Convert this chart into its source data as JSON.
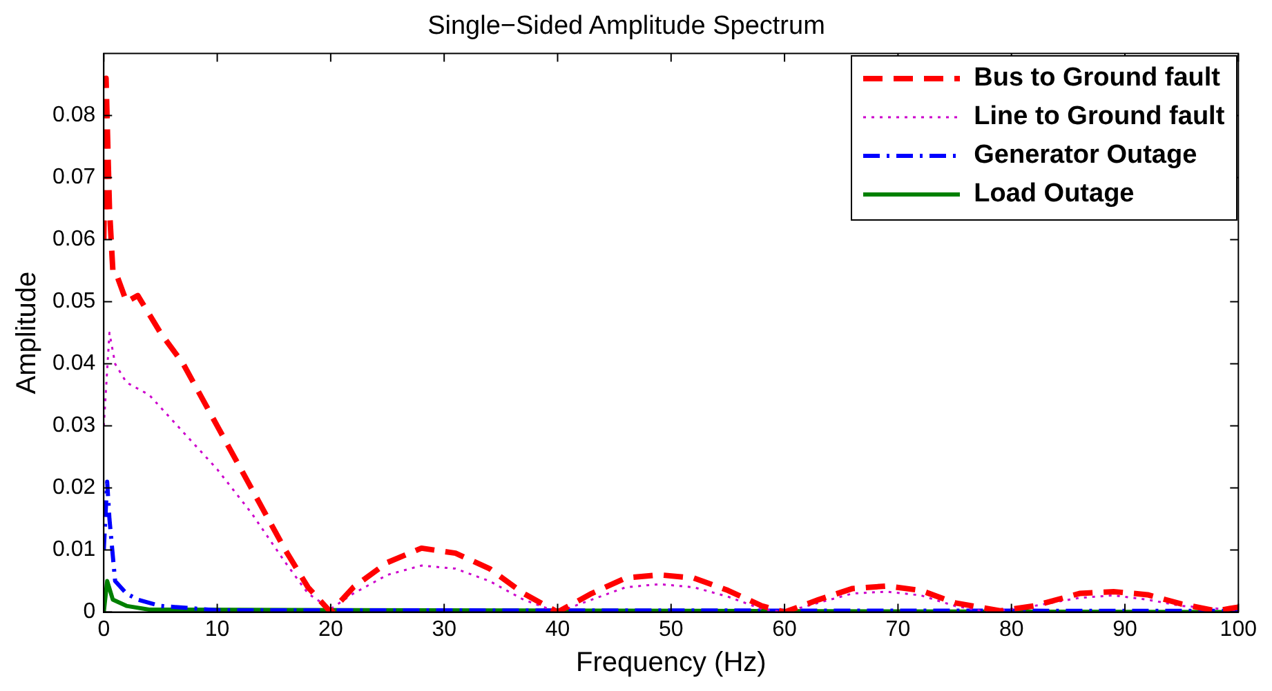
{
  "chart_data": {
    "type": "line",
    "title": "Single−Sided Amplitude Spectrum",
    "xlabel": "Frequency (Hz)",
    "ylabel": "Amplitude",
    "xlim": [
      0,
      100
    ],
    "xticks": [
      0,
      10,
      20,
      30,
      40,
      50,
      60,
      70,
      80,
      90,
      100
    ],
    "ylim": [
      0,
      0.09
    ],
    "yticks": [
      0,
      0.01,
      0.02,
      0.03,
      0.04,
      0.05,
      0.06,
      0.07,
      0.08
    ],
    "grid": false,
    "legend": "top right",
    "marker": "none",
    "series": [
      {
        "name": "Bus to Ground fault",
        "color": "#ff0000",
        "line_style": "dashed",
        "x": [
          0,
          0.2,
          0.5,
          0.8,
          1,
          2,
          3,
          5,
          7,
          10,
          13,
          16,
          18,
          20,
          22,
          25,
          28,
          31,
          34,
          37,
          40,
          43,
          46,
          49,
          52,
          55,
          58,
          60,
          63,
          66,
          69,
          72,
          75,
          79,
          82,
          86,
          89,
          92,
          95,
          98,
          100
        ],
        "values": [
          0.06,
          0.086,
          0.065,
          0.055,
          0.055,
          0.05,
          0.051,
          0.045,
          0.04,
          0.03,
          0.02,
          0.01,
          0.004,
          0,
          0.004,
          0.008,
          0.0103,
          0.0095,
          0.007,
          0.003,
          0,
          0.003,
          0.0055,
          0.006,
          0.0055,
          0.0035,
          0.001,
          0,
          0.002,
          0.0038,
          0.0042,
          0.0035,
          0.0015,
          0.0002,
          0.001,
          0.003,
          0.0033,
          0.0028,
          0.0013,
          0.0002,
          0.0008
        ]
      },
      {
        "name": "Line to Ground fault",
        "color": "#cc00cc",
        "line_style": "dotted",
        "x": [
          0,
          0.5,
          1,
          2,
          4,
          6,
          8,
          10,
          13,
          16,
          18,
          20,
          22,
          25,
          28,
          31,
          34,
          37,
          40,
          43,
          46,
          49,
          52,
          55,
          58,
          60,
          63,
          66,
          69,
          72,
          75,
          78,
          82,
          86,
          89,
          92,
          95,
          100
        ],
        "values": [
          0.03,
          0.045,
          0.04,
          0.037,
          0.035,
          0.031,
          0.027,
          0.023,
          0.016,
          0.008,
          0.003,
          0.0005,
          0.003,
          0.006,
          0.0075,
          0.007,
          0.005,
          0.002,
          0,
          0.002,
          0.004,
          0.0045,
          0.004,
          0.0025,
          0.0005,
          0,
          0.0015,
          0.003,
          0.0033,
          0.0027,
          0.001,
          0,
          0.001,
          0.0023,
          0.0027,
          0.002,
          0.001,
          0.0003
        ]
      },
      {
        "name": "Generator Outage",
        "color": "#0000ff",
        "line_style": "dashdot",
        "x": [
          0,
          0.3,
          0.5,
          1,
          2,
          3,
          5,
          10,
          100
        ],
        "values": [
          0.01,
          0.021,
          0.015,
          0.005,
          0.003,
          0.002,
          0.001,
          0.0003,
          0.0002
        ]
      },
      {
        "name": "Load Outage",
        "color": "#008000",
        "line_style": "solid",
        "x": [
          0,
          0.3,
          0.8,
          2,
          4,
          100
        ],
        "values": [
          0,
          0.005,
          0.002,
          0.001,
          0.0004,
          0
        ]
      }
    ]
  }
}
